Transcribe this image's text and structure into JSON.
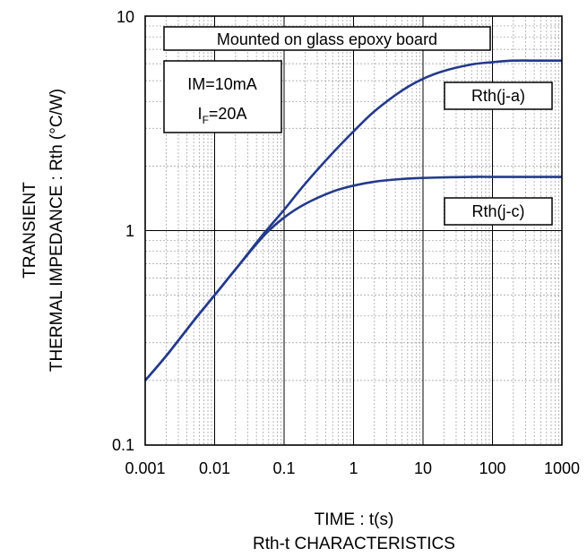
{
  "chart_data": {
    "type": "line",
    "title": "Rth-t CHARACTERISTICS",
    "xlabel": "TIME : t(s)",
    "ylabel_line1": "TRANSIENT",
    "ylabel_line2": "THERMAL IMPEDANCE : Rth (°C/W)",
    "xscale": "log",
    "yscale": "log",
    "xlim": [
      0.001,
      1000
    ],
    "ylim": [
      0.1,
      10
    ],
    "x_ticks": [
      "0.001",
      "0.01",
      "0.1",
      "1",
      "10",
      "100",
      "1000"
    ],
    "y_ticks": [
      "0.1",
      "1",
      "10"
    ],
    "grid": "on (major and minor)",
    "annotations": {
      "board": "Mounted on glass epoxy board",
      "im": "IM=10mA",
      "if_main": "I",
      "if_sub": "F",
      "if_value": "=20A"
    },
    "series": [
      {
        "name": "Rth(j-a)",
        "x": [
          0.001,
          0.002,
          0.005,
          0.01,
          0.02,
          0.05,
          0.1,
          0.2,
          0.5,
          1,
          2,
          5,
          10,
          20,
          50,
          100,
          200,
          500,
          1000
        ],
        "y": [
          0.2,
          0.26,
          0.38,
          0.5,
          0.66,
          0.96,
          1.25,
          1.65,
          2.3,
          2.9,
          3.6,
          4.5,
          5.1,
          5.55,
          5.95,
          6.1,
          6.2,
          6.2,
          6.2
        ]
      },
      {
        "name": "Rth(j-c)",
        "x": [
          0.001,
          0.002,
          0.005,
          0.01,
          0.02,
          0.05,
          0.1,
          0.2,
          0.5,
          1,
          2,
          5,
          10,
          20,
          50,
          100,
          200,
          500,
          1000
        ],
        "y": [
          0.2,
          0.26,
          0.38,
          0.5,
          0.66,
          0.94,
          1.15,
          1.33,
          1.52,
          1.62,
          1.69,
          1.74,
          1.76,
          1.77,
          1.78,
          1.78,
          1.78,
          1.78,
          1.78
        ]
      }
    ]
  },
  "colors": {
    "curve": "#233a8c",
    "major_grid": "#000000",
    "minor_grid": "#9a9a9a",
    "frame": "#000000"
  }
}
